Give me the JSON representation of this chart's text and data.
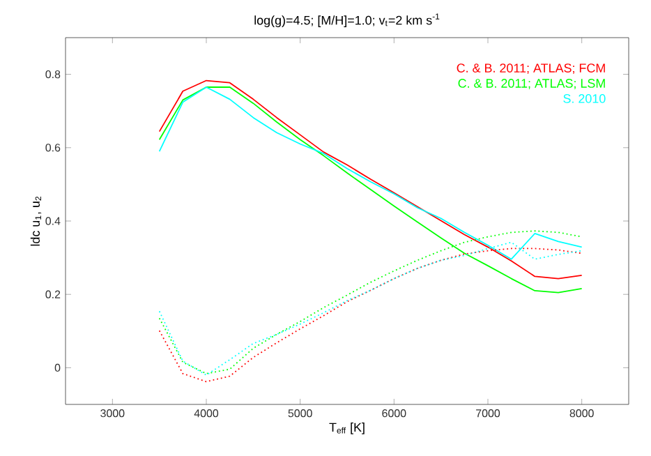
{
  "chart_data": {
    "type": "line",
    "title": "log(g)=4.5; [M/H]=1.0; v$_{t}$=2 km s$^{-1}$",
    "xlabel": "T$_{eff}$ [K]",
    "ylabel": "ldc u$_{1}$, u$_{2}$",
    "x": [
      3500,
      3750,
      4000,
      4250,
      4500,
      4750,
      5000,
      5250,
      5500,
      5750,
      6000,
      6250,
      6500,
      6750,
      7000,
      7250,
      7500,
      7750,
      8000
    ],
    "series": [
      {
        "name": "C. & B. 2011; ATLAS; FCM",
        "color": "#ff0000",
        "line_style": "solid",
        "values": [
          0.644,
          0.754,
          0.783,
          0.777,
          0.732,
          0.682,
          0.635,
          0.588,
          0.553,
          0.514,
          0.477,
          0.439,
          0.401,
          0.363,
          0.329,
          0.291,
          0.249,
          0.243,
          0.252
        ]
      },
      {
        "name": "C. & B. 2011; ATLAS; LSM",
        "color": "#00ff00",
        "line_style": "solid",
        "values": [
          0.622,
          0.73,
          0.765,
          0.765,
          0.721,
          0.67,
          0.622,
          0.578,
          0.531,
          0.486,
          0.441,
          0.397,
          0.354,
          0.312,
          0.278,
          0.243,
          0.21,
          0.205,
          0.216
        ]
      },
      {
        "name": "S. 2010",
        "color": "#00ffff",
        "line_style": "solid",
        "values": [
          0.59,
          0.724,
          0.765,
          0.732,
          0.682,
          0.641,
          0.61,
          0.584,
          0.543,
          0.507,
          0.474,
          0.436,
          0.407,
          0.369,
          0.334,
          0.296,
          0.366,
          0.344,
          0.329
        ]
      },
      {
        "color": "#ff0000",
        "line_style": "dotted",
        "values": [
          0.101,
          -0.016,
          -0.038,
          -0.023,
          0.028,
          0.068,
          0.106,
          0.142,
          0.18,
          0.211,
          0.243,
          0.271,
          0.293,
          0.31,
          0.319,
          0.325,
          0.325,
          0.321,
          0.312
        ]
      },
      {
        "color": "#00ff00",
        "line_style": "dotted",
        "values": [
          0.135,
          0.015,
          -0.016,
          -0.004,
          0.053,
          0.091,
          0.126,
          0.164,
          0.198,
          0.233,
          0.264,
          0.293,
          0.319,
          0.342,
          0.357,
          0.369,
          0.373,
          0.369,
          0.357
        ]
      },
      {
        "color": "#00ffff",
        "line_style": "dotted",
        "values": [
          0.154,
          0.018,
          -0.02,
          0.022,
          0.066,
          0.091,
          0.119,
          0.15,
          0.183,
          0.211,
          0.243,
          0.271,
          0.293,
          0.306,
          0.325,
          0.342,
          0.296,
          0.309,
          0.319
        ]
      }
    ],
    "xlim": [
      2500,
      8500
    ],
    "ylim": [
      -0.1,
      0.9
    ],
    "xticks": [
      3000,
      4000,
      5000,
      6000,
      7000,
      8000
    ],
    "yticks": [
      0,
      0.2,
      0.4,
      0.6,
      0.8
    ],
    "grid": false,
    "legend": "top right",
    "marker": "none"
  }
}
